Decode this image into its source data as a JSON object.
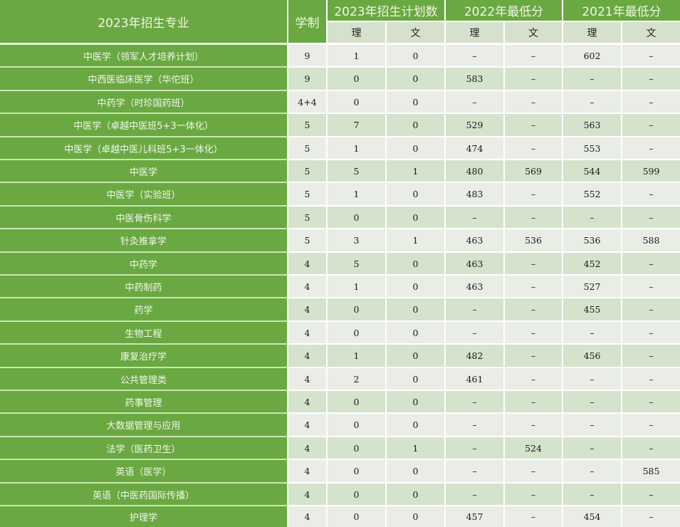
{
  "table": {
    "header": {
      "major": "2023年招生专业",
      "duration": "学制",
      "plan2023": "2023年招生计划数",
      "min2022": "2022年最低分",
      "min2021": "2021年最低分",
      "sci": "理",
      "arts": "文"
    },
    "rows": [
      {
        "major": "中医学（领军人才培养计划）",
        "duration": "9",
        "plan_sci": "1",
        "plan_arts": "0",
        "s22_sci": "–",
        "s22_arts": "–",
        "s21_sci": "602",
        "s21_arts": "–"
      },
      {
        "major": "中西医临床医学（华佗班）",
        "duration": "9",
        "plan_sci": "0",
        "plan_arts": "0",
        "s22_sci": "583",
        "s22_arts": "–",
        "s21_sci": "–",
        "s21_arts": "–"
      },
      {
        "major": "中药学（时珍国药班）",
        "duration": "4+4",
        "plan_sci": "0",
        "plan_arts": "0",
        "s22_sci": "–",
        "s22_arts": "–",
        "s21_sci": "–",
        "s21_arts": "–"
      },
      {
        "major": "中医学（卓越中医班5+3一体化）",
        "duration": "5",
        "plan_sci": "7",
        "plan_arts": "0",
        "s22_sci": "529",
        "s22_arts": "–",
        "s21_sci": "563",
        "s21_arts": "–"
      },
      {
        "major": "中医学（卓越中医儿科班5+3一体化）",
        "duration": "5",
        "plan_sci": "1",
        "plan_arts": "0",
        "s22_sci": "474",
        "s22_arts": "–",
        "s21_sci": "553",
        "s21_arts": "–"
      },
      {
        "major": "中医学",
        "duration": "5",
        "plan_sci": "5",
        "plan_arts": "1",
        "s22_sci": "480",
        "s22_arts": "569",
        "s21_sci": "544",
        "s21_arts": "599"
      },
      {
        "major": "中医学（实验班）",
        "duration": "5",
        "plan_sci": "1",
        "plan_arts": "0",
        "s22_sci": "483",
        "s22_arts": "–",
        "s21_sci": "552",
        "s21_arts": "–"
      },
      {
        "major": "中医骨伤科学",
        "duration": "5",
        "plan_sci": "0",
        "plan_arts": "0",
        "s22_sci": "–",
        "s22_arts": "–",
        "s21_sci": "–",
        "s21_arts": "–"
      },
      {
        "major": "针灸推拿学",
        "duration": "5",
        "plan_sci": "3",
        "plan_arts": "1",
        "s22_sci": "463",
        "s22_arts": "536",
        "s21_sci": "536",
        "s21_arts": "588"
      },
      {
        "major": "中药学",
        "duration": "4",
        "plan_sci": "5",
        "plan_arts": "0",
        "s22_sci": "463",
        "s22_arts": "–",
        "s21_sci": "452",
        "s21_arts": "–"
      },
      {
        "major": "中药制药",
        "duration": "4",
        "plan_sci": "1",
        "plan_arts": "0",
        "s22_sci": "463",
        "s22_arts": "–",
        "s21_sci": "527",
        "s21_arts": "–"
      },
      {
        "major": "药学",
        "duration": "4",
        "plan_sci": "0",
        "plan_arts": "0",
        "s22_sci": "–",
        "s22_arts": "–",
        "s21_sci": "455",
        "s21_arts": "–"
      },
      {
        "major": "生物工程",
        "duration": "4",
        "plan_sci": "0",
        "plan_arts": "0",
        "s22_sci": "–",
        "s22_arts": "–",
        "s21_sci": "–",
        "s21_arts": "–"
      },
      {
        "major": "康复治疗学",
        "duration": "4",
        "plan_sci": "1",
        "plan_arts": "0",
        "s22_sci": "482",
        "s22_arts": "–",
        "s21_sci": "456",
        "s21_arts": "–"
      },
      {
        "major": "公共管理类",
        "duration": "4",
        "plan_sci": "2",
        "plan_arts": "0",
        "s22_sci": "461",
        "s22_arts": "–",
        "s21_sci": "–",
        "s21_arts": "–"
      },
      {
        "major": "药事管理",
        "duration": "4",
        "plan_sci": "0",
        "plan_arts": "0",
        "s22_sci": "–",
        "s22_arts": "–",
        "s21_sci": "–",
        "s21_arts": "–"
      },
      {
        "major": "大数据管理与应用",
        "duration": "4",
        "plan_sci": "0",
        "plan_arts": "0",
        "s22_sci": "–",
        "s22_arts": "–",
        "s21_sci": "–",
        "s21_arts": "–"
      },
      {
        "major": "法学（医药卫生）",
        "duration": "4",
        "plan_sci": "0",
        "plan_arts": "1",
        "s22_sci": "–",
        "s22_arts": "524",
        "s21_sci": "–",
        "s21_arts": "–"
      },
      {
        "major": "英语（医学）",
        "duration": "4",
        "plan_sci": "0",
        "plan_arts": "0",
        "s22_sci": "–",
        "s22_arts": "–",
        "s21_sci": "–",
        "s21_arts": "585"
      },
      {
        "major": "英语（中医药国际传播）",
        "duration": "4",
        "plan_sci": "0",
        "plan_arts": "0",
        "s22_sci": "–",
        "s22_arts": "–",
        "s21_sci": "–",
        "s21_arts": "–"
      },
      {
        "major": "护理学",
        "duration": "4",
        "plan_sci": "0",
        "plan_arts": "0",
        "s22_sci": "457",
        "s22_arts": "–",
        "s21_sci": "454",
        "s21_arts": "–"
      }
    ]
  },
  "colors": {
    "header_green": "#6aa842",
    "row_light": "#e9ede6",
    "row_green_gray": "#d5e2cc",
    "subheader": "#d6e1cd"
  }
}
